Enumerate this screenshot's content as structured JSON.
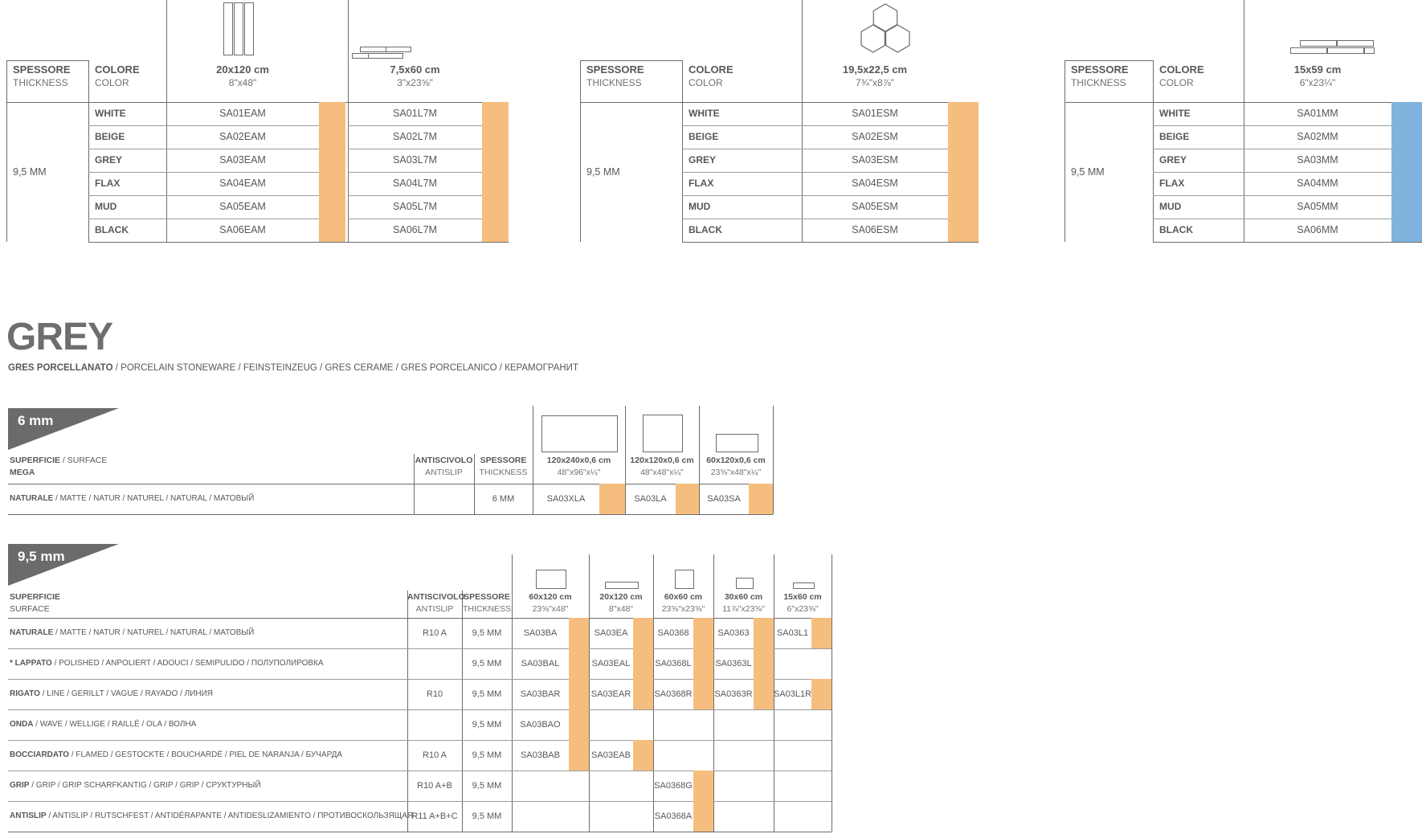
{
  "colors": {
    "line": "#6b6c6e",
    "separator": "#9a9b9d",
    "text": "#58585a",
    "title": "#6d6e70",
    "banner": "#6a6b6d",
    "orange": "#f6be7e",
    "blue": "#7fb3dd"
  },
  "top_tables": [
    {
      "thickness_header": {
        "line1": "SPESSORE",
        "line2": "THICKNESS"
      },
      "color_header": {
        "line1": "COLORE",
        "line2": "COLOR"
      },
      "thickness": "9,5 MM",
      "row_colors": [
        "WHITE",
        "BEIGE",
        "GREY",
        "FLAX",
        "MUD",
        "BLACK"
      ],
      "size_columns": [
        {
          "size_cm": "20x120 cm",
          "size_in": "8\"x48\"",
          "icon": "vertical-planks-icon",
          "swatch": "orange",
          "codes": [
            "SA01EAM",
            "SA02EAM",
            "SA03EAM",
            "SA04EAM",
            "SA05EAM",
            "SA06EAM"
          ]
        },
        {
          "size_cm": "7,5x60 cm",
          "size_in": "3\"x23⅝\"",
          "icon": "offset-strips-icon",
          "swatch": "orange",
          "codes": [
            "SA01L7M",
            "SA02L7M",
            "SA03L7M",
            "SA04L7M",
            "SA05L7M",
            "SA06L7M"
          ]
        }
      ]
    },
    {
      "thickness_header": {
        "line1": "SPESSORE",
        "line2": "THICKNESS"
      },
      "color_header": {
        "line1": "COLORE",
        "line2": "COLOR"
      },
      "thickness": "9,5 MM",
      "row_colors": [
        "WHITE",
        "BEIGE",
        "GREY",
        "FLAX",
        "MUD",
        "BLACK"
      ],
      "size_columns": [
        {
          "size_cm": "19,5x22,5 cm",
          "size_in": "7¾\"x8⅞\"",
          "icon": "hexagons-icon",
          "swatch": "orange",
          "codes": [
            "SA01ESM",
            "SA02ESM",
            "SA03ESM",
            "SA04ESM",
            "SA05ESM",
            "SA06ESM"
          ]
        }
      ]
    },
    {
      "thickness_header": {
        "line1": "SPESSORE",
        "line2": "THICKNESS"
      },
      "color_header": {
        "line1": "COLORE",
        "line2": "COLOR"
      },
      "thickness": "9,5 MM",
      "row_colors": [
        "WHITE",
        "BEIGE",
        "GREY",
        "FLAX",
        "MUD",
        "BLACK"
      ],
      "size_columns": [
        {
          "size_cm": "15x59 cm",
          "size_in": "6\"x23¼\"",
          "icon": "brick-strips-icon",
          "swatch": "blue",
          "codes": [
            "SA01MM",
            "SA02MM",
            "SA03MM",
            "SA04MM",
            "SA05MM",
            "SA06MM"
          ]
        }
      ]
    }
  ],
  "series": {
    "title": "GREY",
    "subtitle_lead": "GRES PORCELLANATO",
    "subtitle_rest": " / PORCELAIN STONEWARE / FEINSTEINZEUG / GRES CERAME / GRES PORCELANICO / КЕРАМОГРАНИТ"
  },
  "table_6mm": {
    "banner": "6 mm",
    "surface_header": {
      "line1_lead": "SUPERFICIE",
      "line1_rest": " / SURFACE",
      "line2_lead": "MEGA",
      "line2_rest": ""
    },
    "antislip_header": {
      "line1": "ANTISCIVOLO",
      "line2": "ANTISLIP"
    },
    "thickness_header": {
      "line1": "SPESSORE",
      "line2": "THICKNESS"
    },
    "size_columns": [
      {
        "size_cm": "120x240x0,6 cm",
        "size_in": "48\"x96\"x¼\""
      },
      {
        "size_cm": "120x120x0,6 cm",
        "size_in": "48\"x48\"x¼\""
      },
      {
        "size_cm": "60x120x0,6 cm",
        "size_in": "23⅝\"x48\"x¼\""
      }
    ],
    "rows": [
      {
        "label_lead": "NATURALE",
        "label_rest": " / MATTE / NATUR / NATUREL / NATURAL / МАТОВЫЙ",
        "antislip": "",
        "thickness": "6 MM",
        "codes": [
          "SA03XLA",
          "SA03LA",
          "SA03SA"
        ]
      }
    ]
  },
  "table_95mm": {
    "banner": "9,5 mm",
    "surface_header": {
      "line1_lead": "SUPERFICIE",
      "line1_rest": "",
      "line2_lead": "",
      "line2_rest": "SURFACE"
    },
    "antislip_header": {
      "line1": "ANTISCIVOLO",
      "line2": "ANTISLIP"
    },
    "thickness_header": {
      "line1": "SPESSORE",
      "line2": "THICKNESS"
    },
    "size_columns": [
      {
        "size_cm": "60x120 cm",
        "size_in": "23⅝\"x48\""
      },
      {
        "size_cm": "20x120 cm",
        "size_in": "8\"x48\""
      },
      {
        "size_cm": "60x60 cm",
        "size_in": "23⅝\"x23⅝\""
      },
      {
        "size_cm": "30x60 cm",
        "size_in": "11⅞\"x23⅝\""
      },
      {
        "size_cm": "15x60 cm",
        "size_in": "6\"x23⅝\""
      }
    ],
    "rows": [
      {
        "label_lead": "NATURALE",
        "label_rest": " / MATTE / NATUR / NATUREL / NATURAL / МАТОВЫЙ",
        "antislip": "R10 A",
        "thickness": "9,5 MM",
        "codes": [
          "SA03BA",
          "SA03EA",
          "SA0368",
          "SA0363",
          "SA03L1"
        ]
      },
      {
        "label_lead": "* LAPPATO",
        "label_rest": " / POLISHED / ANPOLIERT / ADOUCI / SEMIPULIDO / ПОЛУПОЛИРОВКА",
        "antislip": "",
        "thickness": "9,5 MM",
        "codes": [
          "SA03BAL",
          "SA03EAL",
          "SA0368L",
          "SA0363L",
          ""
        ]
      },
      {
        "label_lead": "RIGATO",
        "label_rest": " / LINE / GERILLT / VAGUE / RAYADO / ЛИНИЯ",
        "antislip": "R10",
        "thickness": "9,5 MM",
        "codes": [
          "SA03BAR",
          "SA03EAR",
          "SA0368R",
          "SA0363R",
          "SA03L1R"
        ]
      },
      {
        "label_lead": "ONDA",
        "label_rest": " / WAVE / WELLIGE / RAILLÉ / OLA / ВОЛНА",
        "antislip": "",
        "thickness": "9,5 MM",
        "codes": [
          "SA03BAO",
          "",
          "",
          "",
          ""
        ]
      },
      {
        "label_lead": "BOCCIARDATO",
        "label_rest": " / FLAMED / GESTOCKTE / BOUCHARDÉ / PIEL DE NARANJA / БУЧАРДА",
        "antislip": "R10 A",
        "thickness": "9,5 MM",
        "codes": [
          "SA03BAB",
          "SA03EAB",
          "",
          "",
          ""
        ]
      },
      {
        "label_lead": "GRIP",
        "label_rest": " / GRIP / GRIP SCHARFKANTIG / GRIP / GRIP / СРУКТУРНЫЙ",
        "antislip": "R10 A+B",
        "thickness": "9,5 MM",
        "codes": [
          "",
          "",
          "SA0368G",
          "",
          ""
        ]
      },
      {
        "label_lead": "ANTISLIP",
        "label_rest": " / ANTISLIP / RUTSCHFEST / ANTIDÉRAPANTE / ANTIDESLIZAMIENTO / ПРОТИВОСКОЛЬЗЯЩАЯ",
        "antislip": "R11 A+B+C",
        "thickness": "9,5 MM",
        "codes": [
          "",
          "",
          "SA0368A",
          "",
          ""
        ]
      }
    ]
  }
}
